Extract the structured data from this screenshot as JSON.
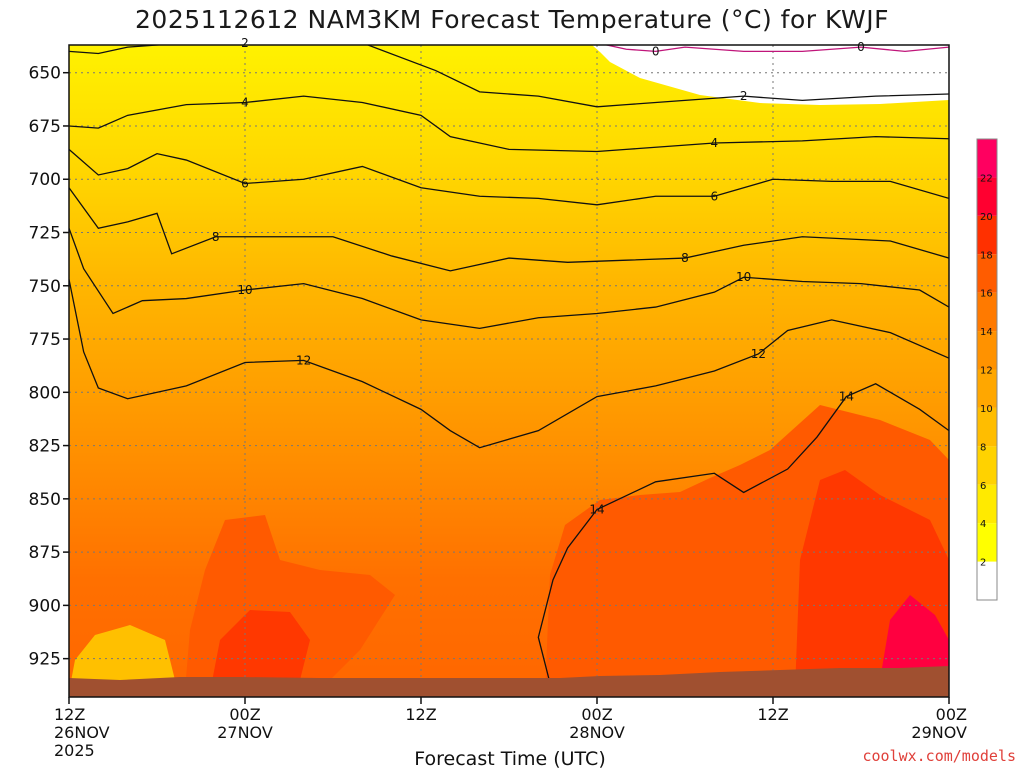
{
  "chart_data": {
    "type": "heatmap",
    "title": "2025112612 NAM3KM Forecast Temperature (°C) for KWJF",
    "xlabel": "Forecast Time (UTC)",
    "ylabel": "",
    "y_axis": {
      "units": "hPa",
      "range": [
        637,
        943
      ],
      "inverted": true,
      "ticks": [
        "650",
        "675",
        "700",
        "725",
        "750",
        "775",
        "800",
        "825",
        "850",
        "875",
        "900",
        "925"
      ],
      "tick_values": [
        650,
        675,
        700,
        725,
        750,
        775,
        800,
        825,
        850,
        875,
        900,
        925
      ]
    },
    "x_axis": {
      "units": "hours since 2025-11-26 12Z",
      "range": [
        0,
        60
      ],
      "ticks": [
        {
          "hour": 0,
          "line1": "12Z",
          "line2": "26NOV",
          "line3": "2025"
        },
        {
          "hour": 12,
          "line1": "00Z",
          "line2": "27NOV"
        },
        {
          "hour": 24,
          "line1": "12Z",
          "line2": ""
        },
        {
          "hour": 36,
          "line1": "00Z",
          "line2": "28NOV"
        },
        {
          "hour": 48,
          "line1": "12Z",
          "line2": ""
        },
        {
          "hour": 60,
          "line1": "00Z",
          "line2": "29NOV"
        }
      ]
    },
    "colorbar": {
      "labels": [
        "2",
        "4",
        "6",
        "8",
        "10",
        "12",
        "14",
        "16",
        "18",
        "20",
        "22"
      ],
      "levels": [
        0,
        2,
        4,
        6,
        8,
        10,
        12,
        14,
        16,
        18,
        20,
        22,
        24
      ],
      "colors": [
        "#ffffff",
        "#ffff00",
        "#ffea00",
        "#ffd200",
        "#ffbd00",
        "#ffa700",
        "#ff9200",
        "#ff7a00",
        "#ff5c00",
        "#ff3000",
        "#ff0030",
        "#ff0060"
      ]
    },
    "isotherms": [
      {
        "value": 0,
        "label": "0",
        "color": "#c0157a",
        "points": [
          [
            36,
            636
          ],
          [
            38,
            639
          ],
          [
            40,
            640
          ],
          [
            42,
            638
          ],
          [
            46,
            640
          ],
          [
            50,
            640
          ],
          [
            54,
            638
          ],
          [
            57,
            640
          ],
          [
            60,
            638
          ]
        ]
      },
      {
        "value": 2,
        "label": "2",
        "color": "#111111",
        "points": [
          [
            0,
            640
          ],
          [
            2,
            641
          ],
          [
            4,
            638
          ],
          [
            8,
            636
          ],
          [
            12,
            636
          ],
          [
            20,
            636
          ],
          [
            25,
            649
          ],
          [
            28,
            659
          ],
          [
            32,
            661
          ],
          [
            36,
            666
          ],
          [
            38,
            665
          ],
          [
            42,
            663
          ],
          [
            46,
            661
          ],
          [
            50,
            663
          ],
          [
            55,
            661
          ],
          [
            60,
            660
          ]
        ]
      },
      {
        "value": 4,
        "label": "4",
        "color": "#111111",
        "points": [
          [
            0,
            675
          ],
          [
            2,
            676
          ],
          [
            4,
            670
          ],
          [
            8,
            665
          ],
          [
            12,
            664
          ],
          [
            16,
            661
          ],
          [
            20,
            664
          ],
          [
            24,
            670
          ],
          [
            26,
            680
          ],
          [
            30,
            686
          ],
          [
            36,
            687
          ],
          [
            38,
            686
          ],
          [
            44,
            683
          ],
          [
            50,
            682
          ],
          [
            55,
            680
          ],
          [
            60,
            681
          ]
        ]
      },
      {
        "value": 6,
        "label": "6",
        "color": "#111111",
        "points": [
          [
            0,
            686
          ],
          [
            2,
            698
          ],
          [
            4,
            695
          ],
          [
            6,
            688
          ],
          [
            8,
            691
          ],
          [
            12,
            702
          ],
          [
            16,
            700
          ],
          [
            20,
            694
          ],
          [
            24,
            704
          ],
          [
            28,
            708
          ],
          [
            32,
            709
          ],
          [
            36,
            712
          ],
          [
            40,
            708
          ],
          [
            44,
            708
          ],
          [
            48,
            700
          ],
          [
            52,
            701
          ],
          [
            56,
            701
          ],
          [
            60,
            709
          ]
        ]
      },
      {
        "value": 8,
        "label": "8",
        "color": "#111111",
        "points": [
          [
            0,
            704
          ],
          [
            2,
            723
          ],
          [
            4,
            720
          ],
          [
            6,
            716
          ],
          [
            7,
            735
          ],
          [
            10,
            727
          ],
          [
            14,
            727
          ],
          [
            18,
            727
          ],
          [
            22,
            736
          ],
          [
            26,
            743
          ],
          [
            30,
            737
          ],
          [
            34,
            739
          ],
          [
            38,
            738
          ],
          [
            42,
            737
          ],
          [
            46,
            731
          ],
          [
            50,
            727
          ],
          [
            56,
            729
          ],
          [
            60,
            737
          ]
        ]
      },
      {
        "value": 10,
        "label": "10",
        "color": "#111111",
        "points": [
          [
            0,
            723
          ],
          [
            1,
            742
          ],
          [
            3,
            763
          ],
          [
            5,
            757
          ],
          [
            8,
            756
          ],
          [
            12,
            752
          ],
          [
            16,
            749
          ],
          [
            20,
            756
          ],
          [
            24,
            766
          ],
          [
            28,
            770
          ],
          [
            32,
            765
          ],
          [
            36,
            763
          ],
          [
            40,
            760
          ],
          [
            44,
            753
          ],
          [
            46,
            746
          ],
          [
            50,
            748
          ],
          [
            54,
            749
          ],
          [
            58,
            752
          ],
          [
            60,
            760
          ]
        ]
      },
      {
        "value": 12,
        "label": "12",
        "color": "#111111",
        "points": [
          [
            0,
            747
          ],
          [
            1,
            781
          ],
          [
            2,
            798
          ],
          [
            4,
            803
          ],
          [
            8,
            797
          ],
          [
            12,
            786
          ],
          [
            16,
            785
          ],
          [
            20,
            795
          ],
          [
            24,
            808
          ],
          [
            26,
            818
          ],
          [
            28,
            826
          ],
          [
            32,
            818
          ],
          [
            36,
            802
          ],
          [
            40,
            797
          ],
          [
            44,
            790
          ],
          [
            47,
            782
          ],
          [
            49,
            771
          ],
          [
            52,
            766
          ],
          [
            56,
            772
          ],
          [
            60,
            784
          ]
        ]
      },
      {
        "value": 14,
        "label": "14",
        "color": "#111111",
        "points": [
          [
            33,
            942
          ],
          [
            32,
            915
          ],
          [
            33,
            888
          ],
          [
            34,
            873
          ],
          [
            36,
            855
          ],
          [
            40,
            842
          ],
          [
            44,
            838
          ],
          [
            46,
            847
          ],
          [
            49,
            836
          ],
          [
            51,
            821
          ],
          [
            53,
            802
          ],
          [
            55,
            796
          ],
          [
            58,
            808
          ],
          [
            60,
            818
          ]
        ]
      }
    ],
    "terrain": {
      "color": "#a05030",
      "surface_pressure_hPa": 935
    }
  },
  "credit": "coolwx.com/models"
}
